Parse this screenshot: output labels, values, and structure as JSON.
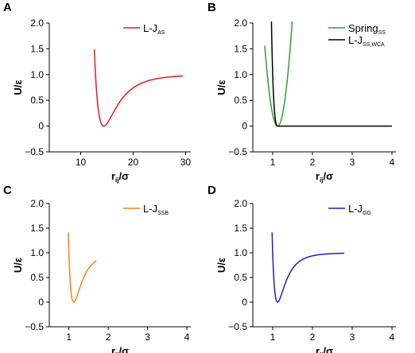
{
  "chart_data": [
    {
      "panel": "A",
      "type": "line",
      "xlabel": "r_ij/σ",
      "ylabel": "U/ε",
      "xlim": [
        4,
        31
      ],
      "ylim": [
        -0.5,
        2.0
      ],
      "xticks": [
        10,
        20,
        30
      ],
      "yticks": [
        -0.5,
        0,
        0.5,
        1.0,
        1.5,
        2.0
      ],
      "ytick_labels": [
        "−0.5",
        "0",
        "0.5",
        "1.0",
        "1.5",
        "2.0"
      ],
      "legend_placement": "top-right",
      "series": [
        {
          "name": "L-J",
          "name_sub": "AS",
          "color": "#e41a1c",
          "model": "lj_shift",
          "sigma": 12.82,
          "r_start": 12.6,
          "r_end": 29.5
        }
      ]
    },
    {
      "panel": "B",
      "type": "line",
      "xlabel": "r_ij/σ",
      "ylabel": "U/ε",
      "xlim": [
        0.5,
        4.1
      ],
      "ylim": [
        -0.5,
        2.0
      ],
      "xticks": [
        1,
        2,
        3,
        4
      ],
      "yticks": [
        -0.5,
        0,
        0.5,
        1.0,
        1.5,
        2.0
      ],
      "ytick_labels": [
        "−0.5",
        "0",
        "0.5",
        "1.0",
        "1.5",
        "2.0"
      ],
      "legend_placement": "top-right",
      "series": [
        {
          "name": "Spring",
          "name_sub": "SS",
          "color": "#2ca02c",
          "model": "spring",
          "r0": 1.1225,
          "k": 15.0,
          "r_start": 0.8,
          "r_end": 1.5
        },
        {
          "name": "L-J",
          "name_sub": "SS,WCA",
          "color": "#000000",
          "model": "wca",
          "r_start": 0.85,
          "r_end": 4.0
        }
      ]
    },
    {
      "panel": "C",
      "type": "line",
      "xlabel": "r_ij/σ",
      "ylabel": "U/ε",
      "xlim": [
        0.5,
        4.1
      ],
      "ylim": [
        -0.5,
        2.0
      ],
      "xticks": [
        1,
        2,
        3,
        4
      ],
      "yticks": [
        -0.5,
        0,
        0.5,
        1.0,
        1.5,
        2.0
      ],
      "ytick_labels": [
        "−0.5",
        "0",
        "0.5",
        "1.0",
        "1.5",
        "2.0"
      ],
      "legend_placement": "top-right",
      "series": [
        {
          "name": "L-J",
          "name_sub": "SSB",
          "color": "#ff7f0e",
          "model": "lj_shift",
          "sigma": 1.0,
          "r_start": 0.985,
          "r_end": 1.7
        }
      ]
    },
    {
      "panel": "D",
      "type": "line",
      "xlabel": "r_ij/σ",
      "ylabel": "U/ε",
      "xlim": [
        0.5,
        4.1
      ],
      "ylim": [
        -0.5,
        2.0
      ],
      "xticks": [
        1,
        2,
        3,
        4
      ],
      "yticks": [
        -0.5,
        0,
        0.5,
        1.0,
        1.5,
        2.0
      ],
      "ytick_labels": [
        "−0.5",
        "0",
        "0.5",
        "1.0",
        "1.5",
        "2.0"
      ],
      "legend_placement": "top-right",
      "series": [
        {
          "name": "L-J",
          "name_sub": "GG",
          "color": "#1f1fbf",
          "model": "lj_shift",
          "sigma": 1.0,
          "r_start": 0.985,
          "r_end": 2.8
        }
      ]
    }
  ]
}
